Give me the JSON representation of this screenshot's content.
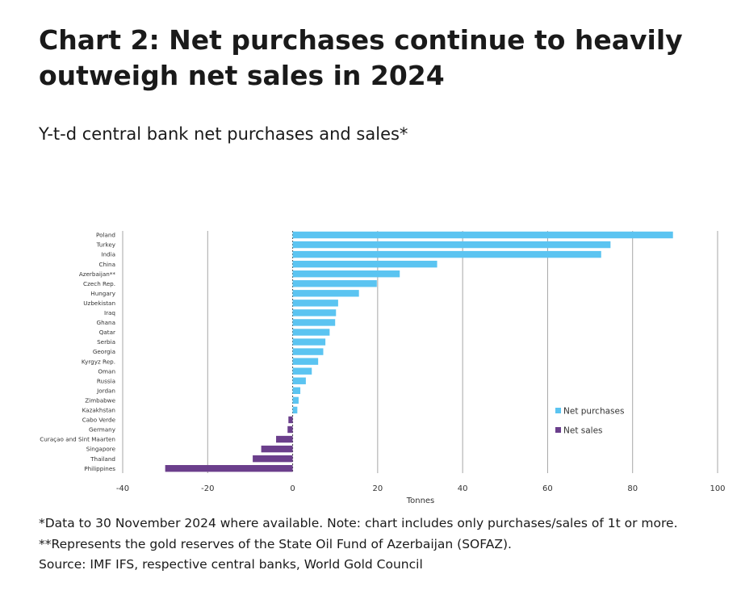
{
  "title": "Chart 2: Net purchases continue to heavily outweigh net sales in 2024",
  "subtitle": "Y-t-d central bank net purchases and sales*",
  "chart_data": {
    "type": "bar",
    "orientation": "horizontal",
    "categories": [
      "Poland",
      "Turkey",
      "India",
      "China",
      "Azerbaijan**",
      "Czech Rep.",
      "Hungary",
      "Uzbekistan",
      "Iraq",
      "Ghana",
      "Qatar",
      "Serbia",
      "Georgia",
      "Kyrgyz Rep.",
      "Oman",
      "Russia",
      "Jordan",
      "Zimbabwe",
      "Kazakhstan",
      "Cabo Verde",
      "Germany",
      "Curaçao and Sint Maarten",
      "Singapore",
      "Thailand",
      "Philippines"
    ],
    "series": [
      {
        "name": "Net purchases",
        "color": "#5bc4f1",
        "values": [
          89.5,
          74.8,
          72.6,
          34.0,
          25.2,
          19.8,
          15.6,
          10.7,
          10.2,
          10.0,
          8.7,
          7.7,
          7.2,
          6.0,
          4.5,
          3.1,
          1.8,
          1.4,
          1.1,
          null,
          null,
          null,
          null,
          null,
          null
        ]
      },
      {
        "name": "Net sales",
        "color": "#6b3f8c",
        "values": [
          null,
          null,
          null,
          null,
          null,
          null,
          null,
          null,
          null,
          null,
          null,
          null,
          null,
          null,
          null,
          null,
          null,
          null,
          null,
          -1.0,
          -1.2,
          -3.9,
          -7.4,
          -9.4,
          -30.0
        ]
      }
    ],
    "xlabel": "Tonnes",
    "xlim": [
      -40,
      100
    ],
    "xticks": [
      -40,
      -20,
      0,
      20,
      40,
      60,
      80,
      100
    ],
    "grid": "vertical",
    "legend_position": "bottom-right"
  },
  "notes": [
    "*Data to 30 November 2024 where available. Note: chart includes only purchases/sales of 1t or more.",
    "**Represents the gold reserves of the State Oil Fund of Azerbaijan (SOFAZ).",
    "Source: IMF IFS, respective central banks, World Gold Council"
  ]
}
